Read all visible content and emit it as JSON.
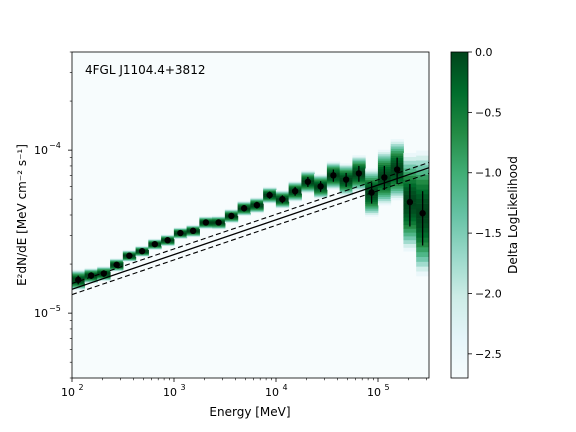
{
  "chart_data": {
    "type": "scatter",
    "title": "4FGL J1104.4+3812",
    "xlabel": "Energy [MeV]",
    "ylabel": "E²dN/dE [MeV cm⁻² s⁻¹]",
    "xscale": "log",
    "yscale": "log",
    "xlim": [
      100,
      316228
    ],
    "ylim": [
      4e-06,
      0.0004
    ],
    "xticks": [
      {
        "value": 100,
        "base": "10",
        "exp": "2"
      },
      {
        "value": 1000,
        "base": "10",
        "exp": "3"
      },
      {
        "value": 10000,
        "base": "10",
        "exp": "4"
      },
      {
        "value": 100000,
        "base": "10",
        "exp": "5"
      }
    ],
    "yticks": [
      {
        "value": 1e-05,
        "base": "10",
        "exp": "−5"
      },
      {
        "value": 0.0001,
        "base": "10",
        "exp": "−4"
      }
    ],
    "grid": false,
    "colorbar": {
      "label": "Delta LogLikelihood",
      "range": [
        -2.7,
        0.0
      ],
      "colormap": [
        "#f7fcfd",
        "#e5f5f9",
        "#ccece6",
        "#99d8c9",
        "#66c2a4",
        "#41ae76",
        "#238b45",
        "#006d2c",
        "#00441b"
      ],
      "ticks": [
        {
          "value": 0.0,
          "label": "0.0"
        },
        {
          "value": -0.5,
          "label": "−0.5"
        },
        {
          "value": -1.0,
          "label": "−1.0"
        },
        {
          "value": -1.5,
          "label": "−1.5"
        },
        {
          "value": -2.0,
          "label": "−2.0"
        },
        {
          "value": -2.5,
          "label": "−2.5"
        }
      ]
    },
    "points": [
      {
        "x": 115,
        "y": 1.6e-05,
        "ylo": 1.5e-05,
        "yhi": 1.7e-05
      },
      {
        "x": 154,
        "y": 1.7e-05,
        "ylo": 1.62e-05,
        "yhi": 1.78e-05
      },
      {
        "x": 205,
        "y": 1.75e-05,
        "ylo": 1.67e-05,
        "yhi": 1.83e-05
      },
      {
        "x": 274,
        "y": 1.98e-05,
        "ylo": 1.9e-05,
        "yhi": 2.06e-05
      },
      {
        "x": 365,
        "y": 2.25e-05,
        "ylo": 2.17e-05,
        "yhi": 2.33e-05
      },
      {
        "x": 487,
        "y": 2.4e-05,
        "ylo": 2.32e-05,
        "yhi": 2.48e-05
      },
      {
        "x": 649,
        "y": 2.65e-05,
        "ylo": 2.56e-05,
        "yhi": 2.74e-05
      },
      {
        "x": 866,
        "y": 2.8e-05,
        "ylo": 2.7e-05,
        "yhi": 2.9e-05
      },
      {
        "x": 1155,
        "y": 3.1e-05,
        "ylo": 2.99e-05,
        "yhi": 3.21e-05
      },
      {
        "x": 1540,
        "y": 3.2e-05,
        "ylo": 3.08e-05,
        "yhi": 3.32e-05
      },
      {
        "x": 2054,
        "y": 3.6e-05,
        "ylo": 3.46e-05,
        "yhi": 3.74e-05
      },
      {
        "x": 2738,
        "y": 3.6e-05,
        "ylo": 3.45e-05,
        "yhi": 3.75e-05
      },
      {
        "x": 3652,
        "y": 3.95e-05,
        "ylo": 3.78e-05,
        "yhi": 4.12e-05
      },
      {
        "x": 4870,
        "y": 4.4e-05,
        "ylo": 4.2e-05,
        "yhi": 4.6e-05
      },
      {
        "x": 6494,
        "y": 4.6e-05,
        "ylo": 4.38e-05,
        "yhi": 4.82e-05
      },
      {
        "x": 8660,
        "y": 5.3e-05,
        "ylo": 5.03e-05,
        "yhi": 5.57e-05
      },
      {
        "x": 11548,
        "y": 5e-05,
        "ylo": 4.72e-05,
        "yhi": 5.28e-05
      },
      {
        "x": 15399,
        "y": 5.6e-05,
        "ylo": 5.25e-05,
        "yhi": 5.95e-05
      },
      {
        "x": 20535,
        "y": 6.4e-05,
        "ylo": 5.95e-05,
        "yhi": 6.85e-05
      },
      {
        "x": 27384,
        "y": 6e-05,
        "ylo": 5.55e-05,
        "yhi": 6.45e-05
      },
      {
        "x": 36517,
        "y": 7e-05,
        "ylo": 6.4e-05,
        "yhi": 7.6e-05
      },
      {
        "x": 48696,
        "y": 6.6e-05,
        "ylo": 5.95e-05,
        "yhi": 7.25e-05
      },
      {
        "x": 64937,
        "y": 7.2e-05,
        "ylo": 6.4e-05,
        "yhi": 8e-05
      },
      {
        "x": 86596,
        "y": 5.5e-05,
        "ylo": 4.7e-05,
        "yhi": 6.3e-05
      },
      {
        "x": 115478,
        "y": 6.8e-05,
        "ylo": 5.7e-05,
        "yhi": 8e-05
      },
      {
        "x": 153993,
        "y": 7.6e-05,
        "ylo": 6.2e-05,
        "yhi": 9e-05
      },
      {
        "x": 205353,
        "y": 4.8e-05,
        "ylo": 3.4e-05,
        "yhi": 6.2e-05
      },
      {
        "x": 273842,
        "y": 4.1e-05,
        "ylo": 2.6e-05,
        "yhi": 5.6e-05
      }
    ],
    "fit": {
      "model": "power-law",
      "solid": {
        "x": [
          100,
          316228
        ],
        "y": [
          1.4e-05,
          7.8e-05
        ]
      },
      "upper": {
        "x": [
          100,
          316228
        ],
        "y": [
          1.52e-05,
          8.4e-05
        ]
      },
      "lower": {
        "x": [
          100,
          316228
        ],
        "y": [
          1.3e-05,
          7.2e-05
        ]
      }
    }
  }
}
